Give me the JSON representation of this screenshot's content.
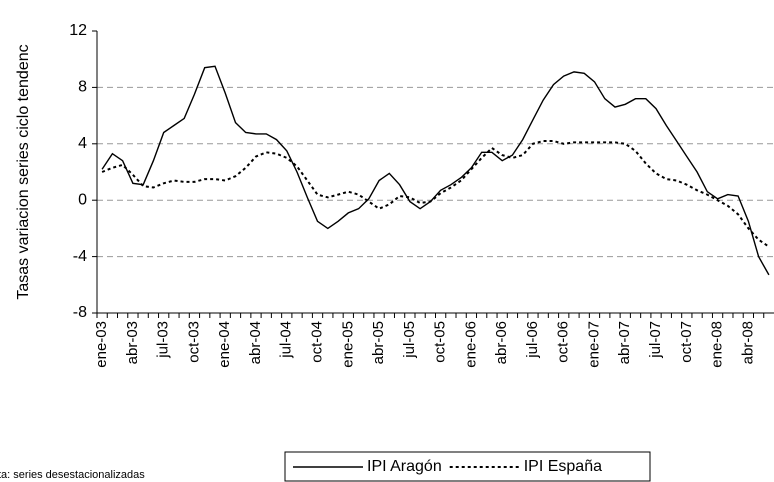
{
  "chart_data": {
    "type": "line",
    "ylabel": "Tasas variacion series ciclo tendenc",
    "note": "ta: series desestacionalizadas",
    "categories": [
      "ene-03",
      null,
      null,
      "abr-03",
      null,
      null,
      "jul-03",
      null,
      null,
      "oct-03",
      null,
      null,
      "ene-04",
      null,
      null,
      "abr-04",
      null,
      null,
      "jul-04",
      null,
      null,
      "oct-04",
      null,
      null,
      "ene-05",
      null,
      null,
      "abr-05",
      null,
      null,
      "jul-05",
      null,
      null,
      "oct-05",
      null,
      null,
      "ene-06",
      null,
      null,
      "abr-06",
      null,
      null,
      "jul-06",
      null,
      null,
      "oct-06",
      null,
      null,
      "ene-07",
      null,
      null,
      "abr-07",
      null,
      null,
      "jul-07",
      null,
      null,
      "oct-07",
      null,
      null,
      "ene-08",
      null,
      null,
      "abr-08",
      null,
      null
    ],
    "series": [
      {
        "name": "IPI Aragón",
        "color": "#000000",
        "linestyle": "solid",
        "values": [
          2.2,
          3.3,
          2.8,
          1.2,
          1.1,
          2.8,
          4.8,
          5.3,
          5.8,
          7.5,
          9.4,
          9.5,
          7.6,
          5.5,
          4.8,
          4.7,
          4.7,
          4.3,
          3.5,
          2.0,
          0.2,
          -1.5,
          -2.0,
          -1.5,
          -0.9,
          -0.6,
          0.1,
          1.4,
          1.9,
          1.1,
          -0.1,
          -0.6,
          -0.1,
          0.7,
          1.1,
          1.6,
          2.3,
          3.4,
          3.4,
          2.8,
          3.2,
          4.3,
          5.7,
          7.1,
          8.2,
          8.8,
          9.1,
          9.0,
          8.4,
          7.2,
          6.6,
          6.8,
          7.2,
          7.2,
          6.5,
          5.3,
          4.2,
          3.1,
          2.0,
          0.6,
          0.1,
          0.4,
          0.3,
          -1.5,
          -4.0,
          -5.3
        ]
      },
      {
        "name": "IPI España",
        "color": "#000000",
        "linestyle": "dotted",
        "values": [
          2.0,
          2.3,
          2.5,
          1.8,
          1.0,
          0.9,
          1.2,
          1.4,
          1.3,
          1.3,
          1.5,
          1.5,
          1.4,
          1.7,
          2.3,
          3.1,
          3.4,
          3.3,
          3.0,
          2.4,
          1.4,
          0.4,
          0.2,
          0.4,
          0.6,
          0.4,
          -0.1,
          -0.6,
          -0.3,
          0.3,
          0.2,
          -0.2,
          -0.1,
          0.5,
          0.9,
          1.4,
          2.2,
          3.0,
          3.7,
          3.2,
          3.0,
          3.2,
          4.0,
          4.2,
          4.2,
          4.0,
          4.1,
          4.1,
          4.1,
          4.1,
          4.1,
          4.0,
          3.5,
          2.6,
          1.9,
          1.5,
          1.4,
          1.1,
          0.7,
          0.4,
          0.0,
          -0.4,
          -1.0,
          -2.0,
          -2.8,
          -3.3
        ]
      }
    ],
    "ylim": [
      -8,
      12
    ],
    "yticks": [
      -8,
      -4,
      0,
      4,
      8,
      12
    ],
    "grid": true,
    "legend": "bottom"
  }
}
